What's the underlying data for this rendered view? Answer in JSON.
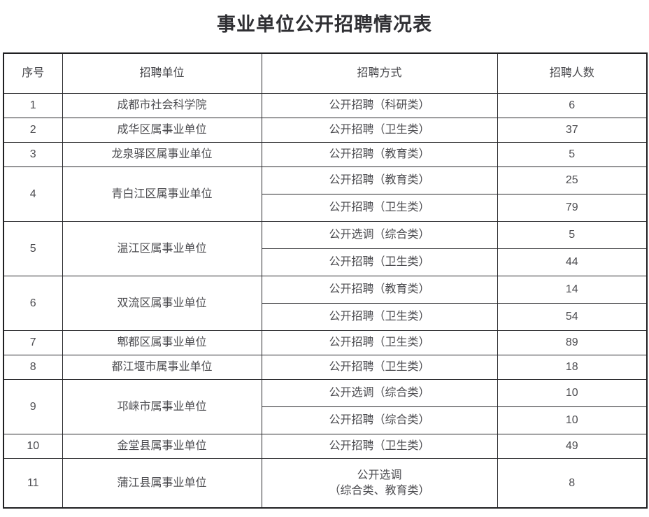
{
  "page": {
    "title": "事业单位公开招聘情况表"
  },
  "colors": {
    "background": "#ffffff",
    "border": "#29292c",
    "outer_border": "#202022",
    "title_text": "#2f2f33",
    "body_text": "#4c4c50"
  },
  "table": {
    "columns": [
      "序号",
      "招聘单位",
      "招聘方式",
      "招聘人数"
    ],
    "rows": [
      {
        "no": "1",
        "unit": "成都市社会科学院",
        "entries": [
          {
            "method": "公开招聘（科研类）",
            "count": "6"
          }
        ]
      },
      {
        "no": "2",
        "unit": "成华区属事业单位",
        "entries": [
          {
            "method": "公开招聘（卫生类）",
            "count": "37"
          }
        ]
      },
      {
        "no": "3",
        "unit": "龙泉驿区属事业单位",
        "entries": [
          {
            "method": "公开招聘（教育类）",
            "count": "5"
          }
        ]
      },
      {
        "no": "4",
        "unit": "青白江区属事业单位",
        "entries": [
          {
            "method": "公开招聘（教育类）",
            "count": "25"
          },
          {
            "method": "公开招聘（卫生类）",
            "count": "79"
          }
        ]
      },
      {
        "no": "5",
        "unit": "温江区属事业单位",
        "entries": [
          {
            "method": "公开选调（综合类）",
            "count": "5"
          },
          {
            "method": "公开招聘（卫生类）",
            "count": "44"
          }
        ]
      },
      {
        "no": "6",
        "unit": "双流区属事业单位",
        "entries": [
          {
            "method": "公开招聘（教育类）",
            "count": "14"
          },
          {
            "method": "公开招聘（卫生类）",
            "count": "54"
          }
        ]
      },
      {
        "no": "7",
        "unit": "郫都区属事业单位",
        "entries": [
          {
            "method": "公开招聘（卫生类）",
            "count": "89"
          }
        ]
      },
      {
        "no": "8",
        "unit": "都江堰市属事业单位",
        "entries": [
          {
            "method": "公开招聘（卫生类）",
            "count": "18"
          }
        ]
      },
      {
        "no": "9",
        "unit": "邛崃市属事业单位",
        "entries": [
          {
            "method": "公开选调（综合类）",
            "count": "10"
          },
          {
            "method": "公开招聘（综合类）",
            "count": "10"
          }
        ]
      },
      {
        "no": "10",
        "unit": "金堂县属事业单位",
        "entries": [
          {
            "method": "公开招聘（卫生类）",
            "count": "49"
          }
        ]
      },
      {
        "no": "11",
        "unit": "蒲江县属事业单位",
        "entries": [
          {
            "method": "公开选调\n（综合类、教育类）",
            "count": "8"
          }
        ]
      }
    ]
  }
}
